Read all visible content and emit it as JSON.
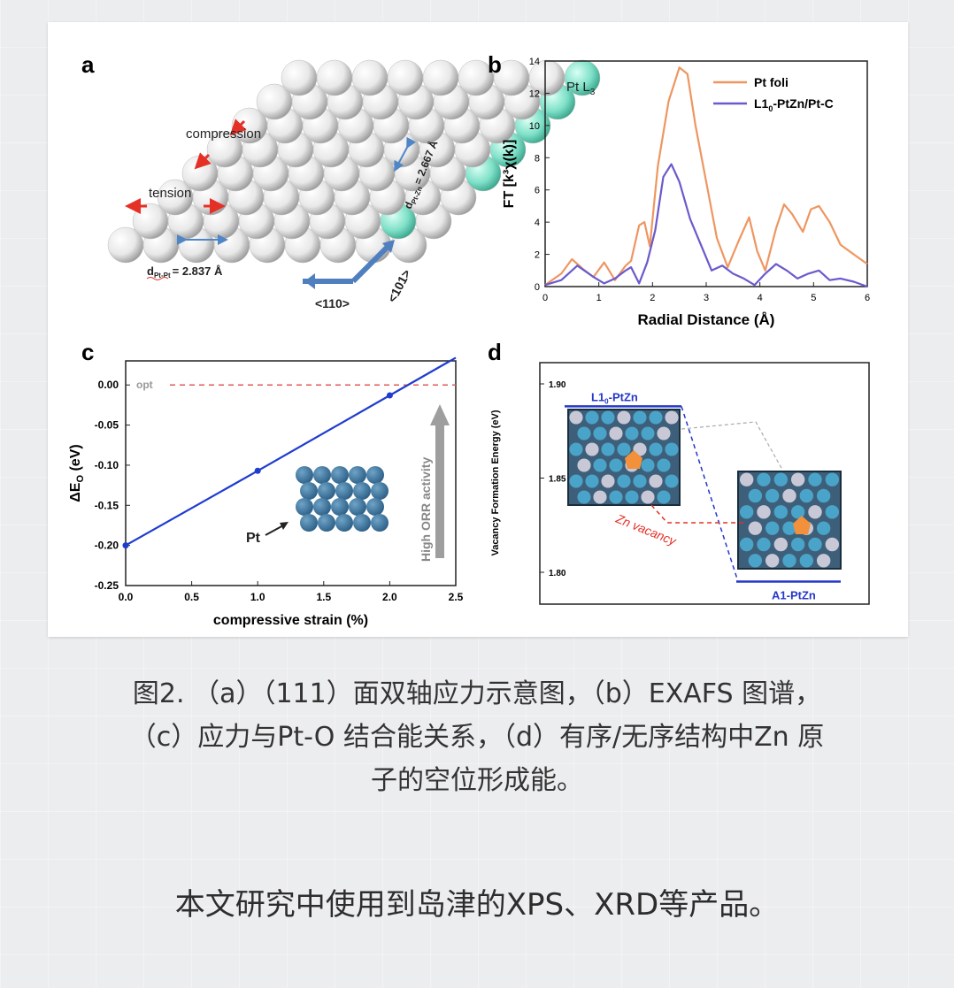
{
  "panel_labels": {
    "a": "a",
    "b": "b",
    "c": "c",
    "d": "d"
  },
  "panel_a": {
    "compression": "compression",
    "tension": "tension",
    "d_ptpt": "d",
    "d_ptpt_sub": "Pt-Pt",
    "d_ptpt_val": "= 2.837 Å",
    "d_ptzn": "d",
    "d_ptzn_sub": "Pt-Zn",
    "d_ptzn_val": "= 2.667 Å",
    "dir_110": "<110>",
    "dir_101": "<101>"
  },
  "chart_data": [
    {
      "panel": "b",
      "type": "line",
      "xlabel": "Radial Distance (Å)",
      "ylabel": "FT [k³χ(k)]",
      "annotation": "Pt L3",
      "xlim": [
        0,
        6
      ],
      "ylim": [
        0,
        14
      ],
      "xticks": [
        "0",
        "1",
        "2",
        "3",
        "4",
        "5",
        "6"
      ],
      "yticks": [
        "0",
        "2",
        "4",
        "6",
        "8",
        "10",
        "12",
        "14"
      ],
      "legend_position": "top-right",
      "colors": {
        "Pt foli": "#ee9661",
        "L10-PtZn/Pt-C": "#6a5acd"
      },
      "series": [
        {
          "name": "Pt foli",
          "x": [
            0,
            0.3,
            0.5,
            0.7,
            0.9,
            1.1,
            1.3,
            1.5,
            1.6,
            1.75,
            1.85,
            1.95,
            2.1,
            2.3,
            2.5,
            2.65,
            2.8,
            3.0,
            3.2,
            3.4,
            3.6,
            3.8,
            3.95,
            4.1,
            4.3,
            4.45,
            4.6,
            4.8,
            4.95,
            5.1,
            5.3,
            5.5,
            5.75,
            6.0
          ],
          "y": [
            0.1,
            0.8,
            1.7,
            1.1,
            0.6,
            1.5,
            0.4,
            1.3,
            1.6,
            3.8,
            4.0,
            2.5,
            7.5,
            11.5,
            13.6,
            13.2,
            10.0,
            6.5,
            3.0,
            1.2,
            2.8,
            4.3,
            2.2,
            1.0,
            3.6,
            5.1,
            4.5,
            3.4,
            4.8,
            5.0,
            4.0,
            2.6,
            2.0,
            1.4
          ]
        },
        {
          "name": "L10-PtZn/Pt-C",
          "x": [
            0,
            0.3,
            0.6,
            0.9,
            1.1,
            1.3,
            1.5,
            1.6,
            1.75,
            1.9,
            2.05,
            2.2,
            2.35,
            2.5,
            2.7,
            2.9,
            3.1,
            3.3,
            3.5,
            3.7,
            3.9,
            4.1,
            4.3,
            4.5,
            4.7,
            4.9,
            5.1,
            5.3,
            5.5,
            5.75,
            6.0
          ],
          "y": [
            0.1,
            0.4,
            1.3,
            0.6,
            0.2,
            0.5,
            1.0,
            1.2,
            0.2,
            1.5,
            3.5,
            6.8,
            7.6,
            6.5,
            4.2,
            2.6,
            1.0,
            1.3,
            0.8,
            0.5,
            0.1,
            0.8,
            1.4,
            1.0,
            0.5,
            0.8,
            1.0,
            0.4,
            0.5,
            0.3,
            0.0
          ]
        }
      ]
    },
    {
      "panel": "c",
      "type": "line",
      "xlabel": "compressive strain (%)",
      "ylabel": "ΔE_O (eV)",
      "xlim": [
        0,
        2.5
      ],
      "ylim": [
        -0.25,
        0.03
      ],
      "xticks": [
        "0.0",
        "0.5",
        "1.0",
        "1.5",
        "2.0",
        "2.5"
      ],
      "yticks": [
        "0.00",
        "-0.05",
        "-0.10",
        "-0.15",
        "-0.20",
        "-0.25"
      ],
      "reference_line": {
        "label": "opt",
        "y": 0.0
      },
      "side_arrow_label": "High ORR activity",
      "inset_label": "Pt",
      "series": [
        {
          "name": "",
          "x": [
            0.0,
            1.0,
            2.0,
            2.5
          ],
          "y": [
            -0.2,
            -0.107,
            -0.013,
            0.034
          ],
          "markers": [
            true,
            true,
            true,
            false
          ]
        }
      ]
    },
    {
      "panel": "d",
      "type": "scatter",
      "ylabel": "Vacancy Formation Energy (eV)",
      "ylim": [
        1.8,
        1.9
      ],
      "yticks": [
        "1.90",
        "1.85",
        "1.80"
      ],
      "levels": [
        {
          "name": "L10-PtZn",
          "y": 1.897
        },
        {
          "name": "A1-PtZn",
          "y": 1.796
        }
      ],
      "annotation": "Zn vacancy"
    }
  ],
  "caption": {
    "line1": "图2. （a）（111）面双轴应力示意图，（b）EXAFS 图谱，",
    "line2": "（c）应力与Pt-O 结合能关系，（d）有序/无序结构中Zn 原",
    "line3": "子的空位形成能。"
  },
  "footer": "本文研究中使用到岛津的XPS、XRD等产品。"
}
